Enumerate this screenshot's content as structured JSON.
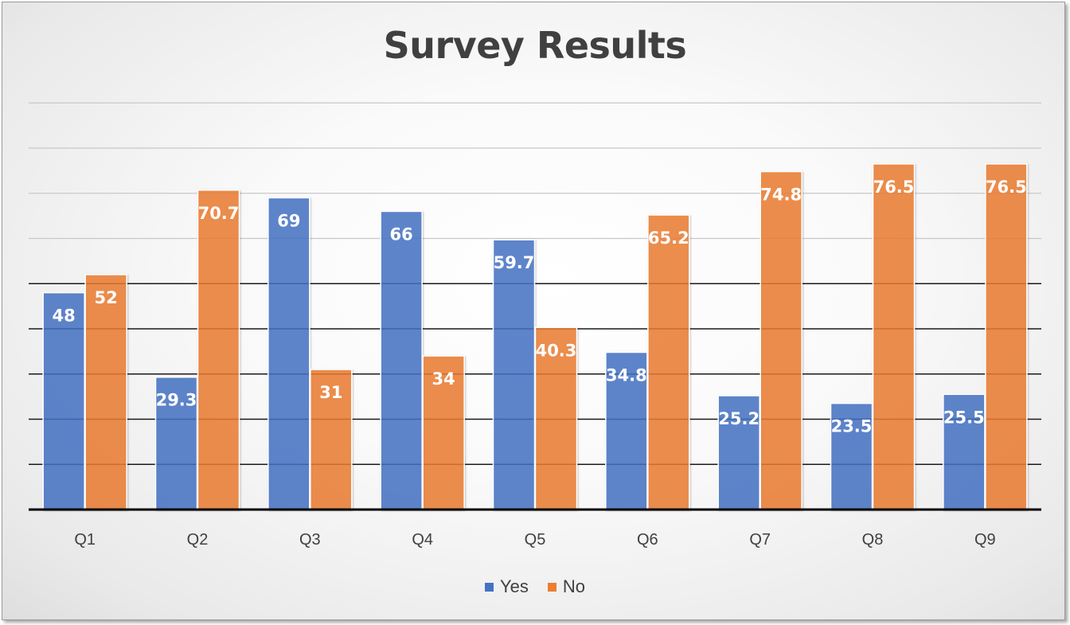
{
  "chart_data": {
    "type": "bar",
    "title": "Survey Results",
    "categories": [
      "Q1",
      "Q2",
      "Q3",
      "Q4",
      "Q5",
      "Q6",
      "Q7",
      "Q8",
      "Q9"
    ],
    "series": [
      {
        "name": "Yes",
        "color": "#4472C4",
        "values": [
          48,
          29.3,
          69,
          66,
          59.7,
          34.8,
          25.2,
          23.5,
          25.5
        ]
      },
      {
        "name": "No",
        "color": "#ED7D31",
        "values": [
          52,
          70.7,
          31,
          34,
          40.3,
          65.2,
          74.8,
          76.5,
          76.5
        ]
      }
    ],
    "ylim": [
      0,
      90
    ],
    "grid": true,
    "legend": "bottom",
    "data_labels": true
  }
}
